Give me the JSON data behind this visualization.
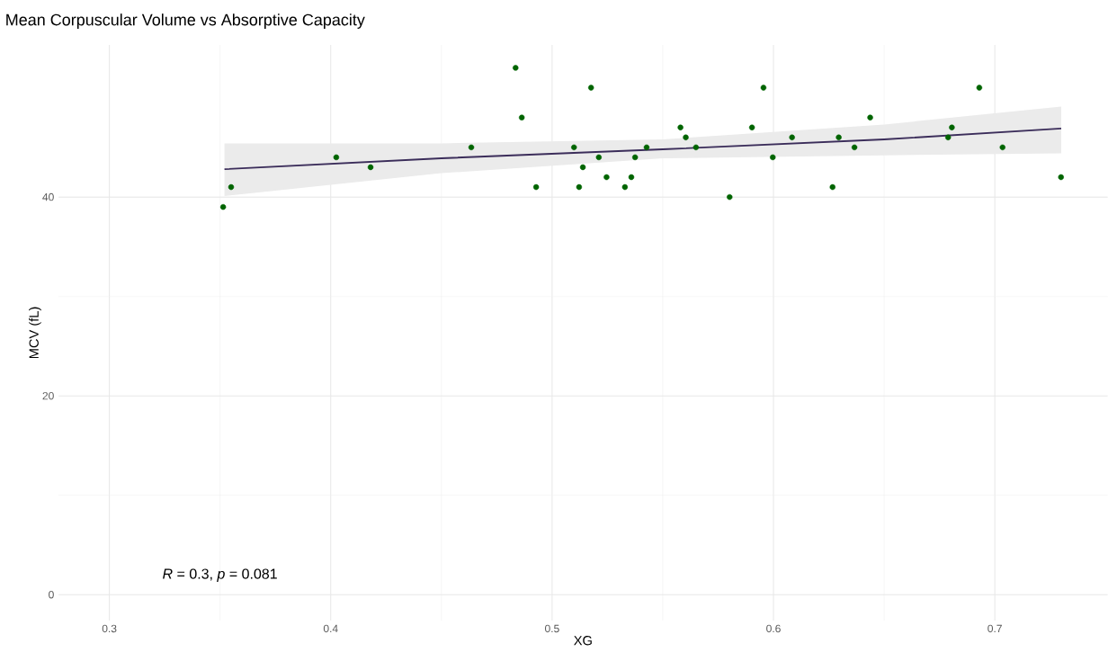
{
  "chart_data": {
    "type": "scatter",
    "title": "Mean Corpuscular Volume vs Absorptive Capacity",
    "xlabel": "XG",
    "ylabel": "MCV (fL)",
    "xlim": [
      0.277,
      0.751
    ],
    "ylim": [
      -2.6,
      55.3
    ],
    "xticks": [
      0.3,
      0.4,
      0.5,
      0.6,
      0.7
    ],
    "yticks": [
      0,
      20,
      40
    ],
    "grid": true,
    "annotations": [
      "*R* = 0.3, *p* = 0.081"
    ],
    "series": [
      {
        "marker": "circle",
        "color": "#006400",
        "x": [
          0.3514,
          0.355,
          0.4025,
          0.418,
          0.4635,
          0.4835,
          0.4863,
          0.4928,
          0.5176,
          0.5099,
          0.5139,
          0.5122,
          0.5211,
          0.5246,
          0.5329,
          0.5358,
          0.5375,
          0.5427,
          0.558,
          0.5604,
          0.565,
          0.5802,
          0.5903,
          0.5955,
          0.5997,
          0.6084,
          0.6267,
          0.6295,
          0.6366,
          0.6437,
          0.6789,
          0.6806,
          0.693,
          0.7035,
          0.7299
        ],
        "values": [
          39,
          41,
          44,
          43,
          45,
          53,
          48,
          41,
          51,
          45,
          43,
          41,
          44,
          42,
          41,
          42,
          44,
          45,
          47,
          46,
          45,
          40,
          47,
          51,
          44,
          46,
          41,
          46,
          45,
          48,
          46,
          47,
          51,
          45,
          42
        ]
      },
      {
        "type": "line",
        "marker": "none",
        "color": "#3b2d5a",
        "x": [
          0.352,
          0.45,
          0.55,
          0.65,
          0.73
        ],
        "values": [
          42.8,
          43.9,
          44.8,
          45.8,
          46.9
        ],
        "lower": [
          40.1,
          42.4,
          43.9,
          44.2,
          44.4
        ],
        "upper": [
          45.4,
          45.4,
          45.8,
          47.3,
          49.1
        ]
      }
    ]
  }
}
